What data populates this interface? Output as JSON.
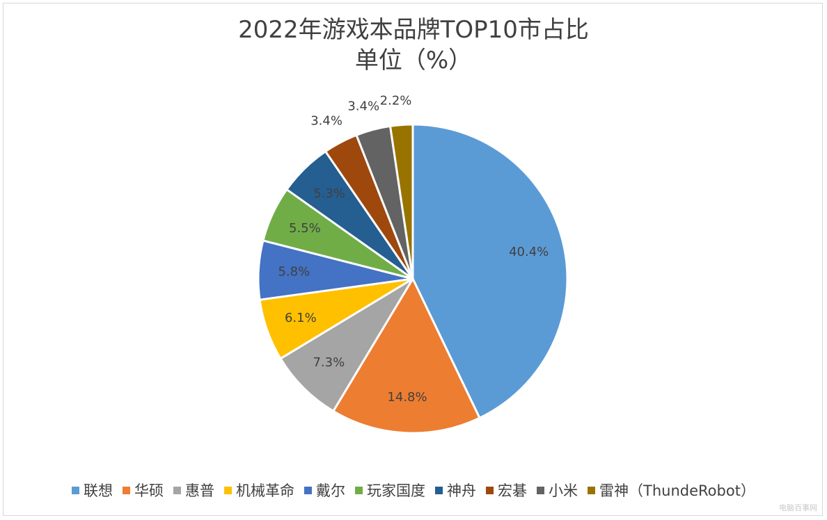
{
  "chart_data": {
    "type": "pie",
    "title": "2022年游戏本品牌TOP10市占比",
    "subtitle": "单位（%）",
    "start_angle_deg": 0,
    "direction": "clockwise",
    "legend_position": "bottom",
    "slices": [
      {
        "name": "联想",
        "value": 40.4,
        "label": "40.4%",
        "color": "#5B9BD5"
      },
      {
        "name": "华硕",
        "value": 14.8,
        "label": "14.8%",
        "color": "#ED7D31"
      },
      {
        "name": "惠普",
        "value": 7.3,
        "label": "7.3%",
        "color": "#A5A5A5"
      },
      {
        "name": "机械革命",
        "value": 6.1,
        "label": "6.1%",
        "color": "#FFC000"
      },
      {
        "name": "戴尔",
        "value": 5.8,
        "label": "5.8%",
        "color": "#4472C4"
      },
      {
        "name": "玩家国度",
        "value": 5.5,
        "label": "5.5%",
        "color": "#70AD47"
      },
      {
        "name": "神舟",
        "value": 5.3,
        "label": "5.3%",
        "color": "#255E91"
      },
      {
        "name": "宏碁",
        "value": 3.4,
        "label": "3.4%",
        "color": "#9E480E"
      },
      {
        "name": "小米",
        "value": 3.4,
        "label": "3.4%",
        "color": "#636363"
      },
      {
        "name": "雷神（ThundeRobot）",
        "value": 2.2,
        "label": "2.2%",
        "color": "#997300"
      }
    ]
  },
  "watermark": "电脑百事网"
}
